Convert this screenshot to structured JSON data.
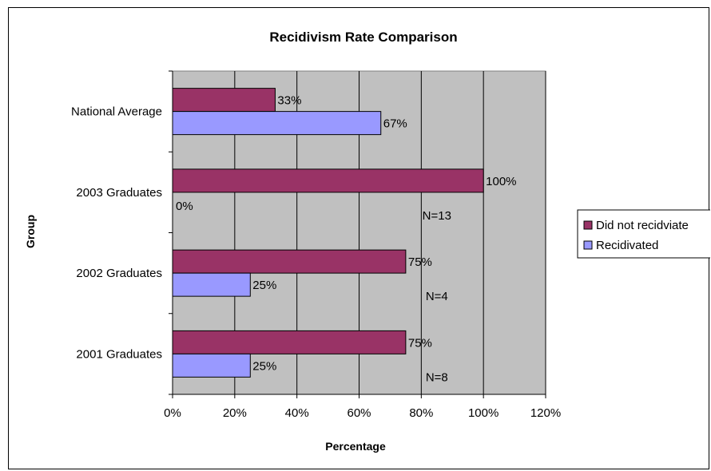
{
  "chart_data": {
    "type": "bar",
    "orientation": "horizontal",
    "title": "Recidivism Rate Comparison",
    "xlabel": "Percentage",
    "ylabel": "Group",
    "categories": [
      "National Average",
      "2003 Graduates",
      "2002 Graduates",
      "2001 Graduates"
    ],
    "series": [
      {
        "name": "Did not recidviate",
        "color": "#993366",
        "values": [
          33,
          100,
          75,
          75
        ],
        "labels": [
          "33%",
          "100%",
          "75%",
          "75%"
        ]
      },
      {
        "name": "Recidivated",
        "color": "#9999FF",
        "values": [
          67,
          0,
          25,
          25
        ],
        "labels": [
          "67%",
          "0%",
          "25%",
          "25%"
        ]
      }
    ],
    "annotations": [
      "",
      "N=13",
      "N=4",
      "N=8"
    ],
    "xlim": [
      0,
      120
    ],
    "xticks": [
      "0%",
      "20%",
      "40%",
      "60%",
      "80%",
      "100%",
      "120%"
    ],
    "grid": true,
    "plot_background": "#C0C0C0",
    "legend": "right"
  }
}
